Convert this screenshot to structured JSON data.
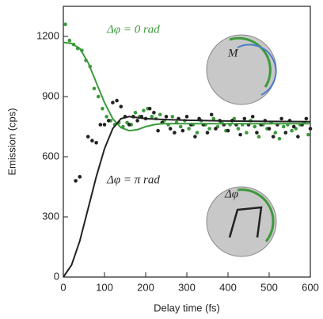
{
  "chart_data": {
    "type": "scatter",
    "xlabel": "Delay time (fs)",
    "ylabel": "Emission (cps)",
    "xlim": [
      0,
      600
    ],
    "ylim": [
      0,
      1350
    ],
    "xticks": [
      0,
      100,
      200,
      300,
      400,
      500,
      600
    ],
    "yticks": [
      0,
      300,
      600,
      900,
      1200
    ],
    "annotations": [
      {
        "text": "Δφ = 0 rad",
        "color": "#3c9a3c"
      },
      {
        "text": "Δφ = π  rad",
        "color": "#222222"
      }
    ],
    "inset_labels": [
      "M",
      "Δφ"
    ],
    "series": [
      {
        "kind": "points",
        "color": "#3c9a3c",
        "x": [
          5,
          15,
          25,
          35,
          45,
          55,
          65,
          75,
          85,
          95,
          105,
          115,
          125,
          135,
          145,
          155,
          165,
          175,
          185,
          195,
          205,
          215,
          225,
          235,
          245,
          255,
          265,
          275,
          285,
          295,
          305,
          315,
          325,
          335,
          345,
          355,
          365,
          375,
          385,
          395,
          405,
          415,
          425,
          435,
          445,
          455,
          465,
          475,
          485,
          495,
          505,
          515,
          525,
          535,
          545,
          555,
          565,
          575,
          585,
          595
        ],
        "values": [
          1260,
          1180,
          1160,
          1140,
          1130,
          1080,
          1050,
          940,
          900,
          840,
          800,
          780,
          760,
          770,
          750,
          770,
          760,
          820,
          800,
          830,
          840,
          800,
          790,
          810,
          780,
          760,
          800,
          770,
          750,
          780,
          740,
          760,
          720,
          780,
          760,
          740,
          790,
          750,
          770,
          730,
          760,
          790,
          740,
          760,
          720,
          780,
          750,
          700,
          760,
          740,
          770,
          720,
          690,
          750,
          760,
          730,
          740,
          760,
          770,
          710
        ]
      },
      {
        "kind": "points",
        "color": "#222222",
        "x": [
          30,
          40,
          60,
          70,
          80,
          90,
          100,
          110,
          120,
          130,
          140,
          150,
          160,
          170,
          180,
          190,
          200,
          210,
          220,
          230,
          240,
          250,
          260,
          270,
          280,
          290,
          300,
          310,
          320,
          330,
          340,
          350,
          360,
          370,
          380,
          390,
          400,
          410,
          420,
          430,
          440,
          450,
          460,
          470,
          480,
          490,
          500,
          510,
          520,
          530,
          540,
          550,
          560,
          570,
          580,
          590,
          600
        ],
        "values": [
          480,
          500,
          700,
          680,
          670,
          760,
          760,
          780,
          870,
          880,
          850,
          800,
          760,
          800,
          780,
          800,
          790,
          840,
          820,
          730,
          770,
          800,
          740,
          720,
          790,
          730,
          800,
          760,
          700,
          790,
          760,
          720,
          810,
          740,
          780,
          760,
          730,
          780,
          760,
          710,
          790,
          760,
          800,
          720,
          760,
          780,
          740,
          700,
          760,
          790,
          720,
          780,
          750,
          700,
          760,
          790,
          740
        ]
      },
      {
        "kind": "line",
        "color": "#3c9a3c",
        "x": [
          0,
          20,
          40,
          60,
          80,
          100,
          120,
          140,
          160,
          180,
          200,
          220,
          240,
          260,
          300,
          400,
          500,
          600
        ],
        "values": [
          1170,
          1165,
          1140,
          1070,
          970,
          870,
          790,
          745,
          730,
          735,
          750,
          760,
          765,
          765,
          765,
          765,
          765,
          765
        ]
      },
      {
        "kind": "line",
        "color": "#222222",
        "x": [
          0,
          20,
          40,
          60,
          80,
          100,
          120,
          140,
          160,
          180,
          200,
          250,
          300,
          400,
          500,
          600
        ],
        "values": [
          0,
          60,
          180,
          340,
          500,
          640,
          740,
          790,
          800,
          795,
          790,
          785,
          782,
          778,
          776,
          775
        ]
      }
    ]
  }
}
